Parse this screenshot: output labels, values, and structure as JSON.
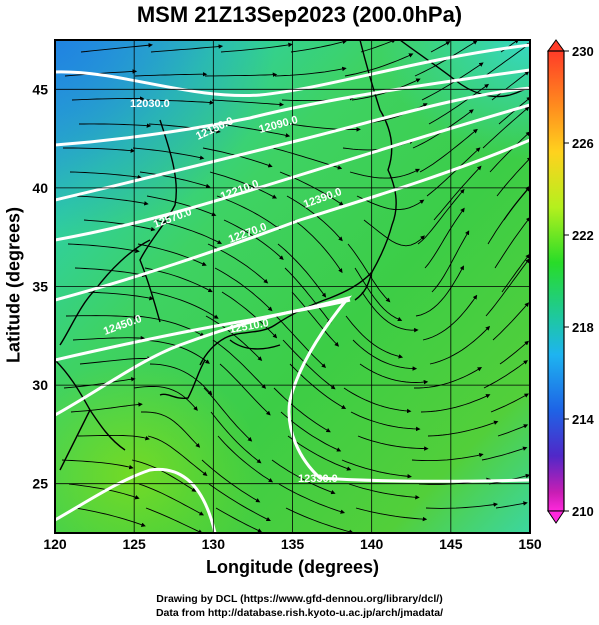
{
  "title": "MSM 21Z13Sep2023 (200.0hPa)",
  "xlabel": "Longitude (degrees)",
  "ylabel": "Latitude  (degrees)",
  "credits": [
    "Drawing by DCL (https://www.gfd-dennou.org/library/dcl/)",
    "Data from http://database.rish.kyoto-u.ac.jp/arch/jmadata/"
  ],
  "colorbar": {
    "min": 210,
    "max": 230,
    "ticks": [
      "230",
      "226",
      "222",
      "218",
      "214",
      "210"
    ],
    "colors": [
      "#ff3c28",
      "#ff8c1e",
      "#ffd21e",
      "#b4f01e",
      "#28dc28",
      "#1ec8a0",
      "#1eb4f0",
      "#1e64e6",
      "#5028c8",
      "#c81eb4",
      "#ff28dc"
    ]
  },
  "map": {
    "x_range": [
      120,
      150
    ],
    "y_range": [
      22.5,
      47.5
    ],
    "x_ticks": [
      "120",
      "125",
      "130",
      "135",
      "140",
      "145",
      "150"
    ],
    "y_ticks": [
      "25",
      "30",
      "35",
      "40",
      "45"
    ],
    "contour_labels": [
      "12030.0",
      "12150.0",
      "12090.0",
      "12210.0",
      "12270.0",
      "12330.0",
      "12450.0",
      "12390.0",
      "12510.0",
      "12570.0"
    ]
  }
}
